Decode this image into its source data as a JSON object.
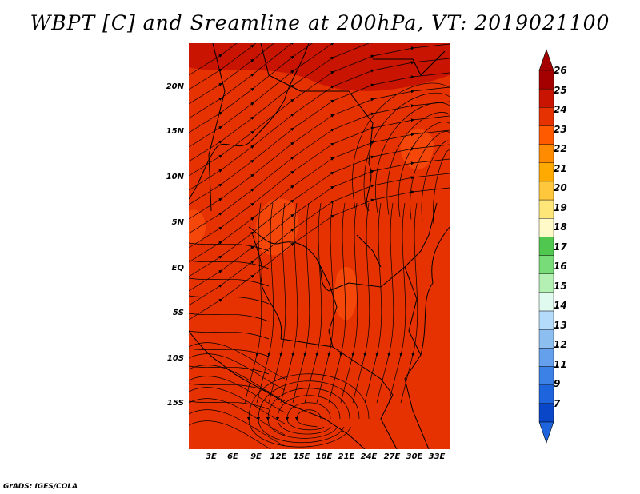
{
  "title": "WBPT [C] and Sreamline at 200hPa, VT: 2019021100",
  "footer": "GrADS: IGES/COLA",
  "map": {
    "lat_ticks": [
      "20N",
      "15N",
      "10N",
      "5N",
      "EQ",
      "5S",
      "10S",
      "15S"
    ],
    "lon_ticks": [
      "3E",
      "6E",
      "9E",
      "12E",
      "15E",
      "18E",
      "21E",
      "24E",
      "27E",
      "30E",
      "33E"
    ],
    "fill_color_dominant": "#e63200",
    "fill_color_north": "#c81400",
    "fill_color_patches": "#ff5a10",
    "streamline_color": "#000000"
  },
  "colorbar": {
    "labels": [
      "26",
      "25",
      "24",
      "23",
      "22",
      "21",
      "20",
      "19",
      "18",
      "17",
      "16",
      "15",
      "14",
      "13",
      "12",
      "11",
      "9",
      "7"
    ],
    "colors": [
      "#a50000",
      "#c81400",
      "#e63200",
      "#ff5a00",
      "#ff8c00",
      "#ffaa00",
      "#ffc83c",
      "#ffe678",
      "#fffac8",
      "#50c850",
      "#78dc78",
      "#b4f0b4",
      "#e1faf0",
      "#b4dcfa",
      "#8cbef0",
      "#64a0eb",
      "#3c82e6",
      "#1e64dc",
      "#0a46c8"
    ]
  }
}
